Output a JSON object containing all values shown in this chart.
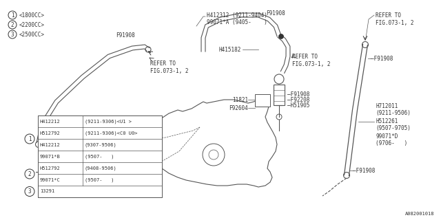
{
  "bg_color": "#ffffff",
  "line_color": "#555555",
  "dark_color": "#333333",
  "diagram_id": "A082001018",
  "table_rows": [
    [
      "H412212",
      "(9211-9306)<U1 >"
    ],
    [
      "H512792",
      "(9211-9306)<C0 U0>"
    ],
    [
      "H412212",
      "(9307-9506)"
    ],
    [
      "99071*B",
      "(9507-   )"
    ],
    [
      "H512792",
      "(9408-9506)"
    ],
    [
      "99071*C",
      "(9507-   )"
    ],
    [
      "13291",
      ""
    ]
  ],
  "engine_labels": [
    "<1800CC>",
    "<2200CC>",
    "<2500CC>"
  ]
}
